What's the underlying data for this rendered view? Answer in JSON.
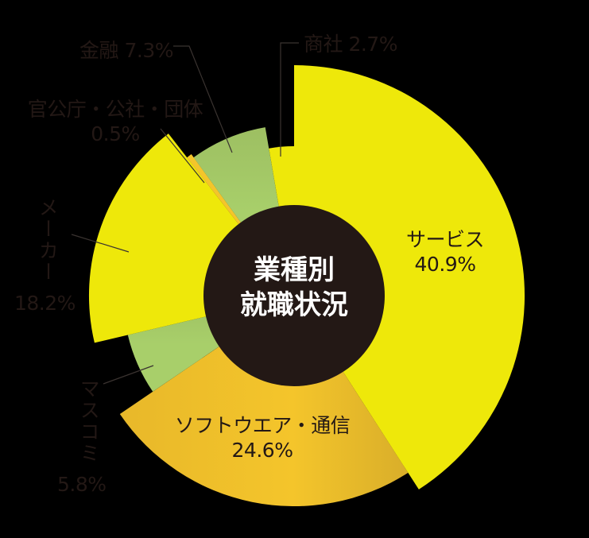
{
  "chart_data": {
    "type": "pie",
    "subtype": "polar-area (rose) chart with center hole",
    "title": "業種別就職状況",
    "title_lines": [
      "業種別",
      "就職状況"
    ],
    "categories": [
      "サービス",
      "ソフトウエア・通信",
      "マスコミ",
      "メーカー",
      "官公庁・公社・団体",
      "金融",
      "商社"
    ],
    "values": [
      40.9,
      24.6,
      5.8,
      18.2,
      0.5,
      7.3,
      2.7
    ],
    "unit": "%",
    "slices": [
      {
        "label": "サービス",
        "value": 40.9,
        "value_label": "40.9%",
        "color": "#EEE80A",
        "radius": 290
      },
      {
        "label": "ソフトウエア・通信",
        "value": 24.6,
        "value_label": "24.6%",
        "color": "#F4C52B",
        "radius": 265
      },
      {
        "label": "マスコミ",
        "value": 5.8,
        "value_label": "5.8%",
        "color": "#A8CF6A",
        "radius": 215
      },
      {
        "label": "メーカー",
        "value": 18.2,
        "value_label": "18.2%",
        "color": "#EEE80A",
        "radius": 258
      },
      {
        "label": "官公庁・公社・団体",
        "value": 0.5,
        "value_label": "0.5%",
        "color": "#F4C52B",
        "radius": 220
      },
      {
        "label": "金融",
        "value": 7.3,
        "value_label": "7.3%",
        "color": "#A8CF6A",
        "radius": 215
      },
      {
        "label": "商社",
        "value": 2.7,
        "value_label": "2.7%",
        "color": "#EEE80A",
        "radius": 188
      }
    ],
    "start_angle_deg": 0,
    "direction": "clockwise",
    "center_hole_color": "#231815",
    "background": "#000000"
  },
  "labels": {
    "center_line1": "業種別",
    "center_line2": "就職状況",
    "service_name": "サービス",
    "service_pct": "40.9%",
    "software_name": "ソフトウエア・通信",
    "software_pct": "24.6%",
    "masscomm_name": "マスコミ",
    "masscomm_pct": "5.8%",
    "maker_name": "メーカー",
    "maker_pct": "18.2%",
    "gov_name": "官公庁・公社・団体",
    "gov_pct": "0.5%",
    "finance": "金融 7.3%",
    "trading": "商社 2.7%"
  }
}
